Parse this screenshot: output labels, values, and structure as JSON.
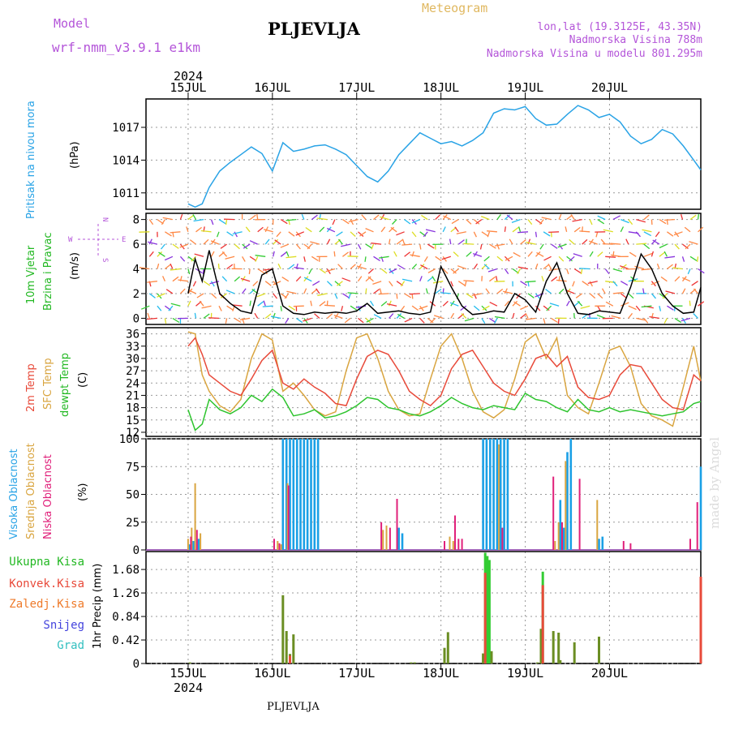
{
  "header": {
    "model_label": "Model",
    "model_name": "wrf-nmm_v3.9.1  e1km",
    "title": "PLJEVLJA",
    "meteogram": "Meteogram",
    "lonlat": "lon,lat (19.3125E, 43.35N)",
    "elevation": "Nadmorska Visina 788m",
    "model_elevation": "Nadmorska Visina u modelu 801.295m",
    "year_top": "2024",
    "year_bottom": "2024",
    "footer_station": "PLJEVLJA",
    "watermark": "made by Angel"
  },
  "colors": {
    "pressure": "#29a3e6",
    "temp2m": "#e84a3a",
    "sfc_temp": "#d9a540",
    "dewpt": "#2ec42e",
    "high_cloud": "#1aa0e6",
    "mid_cloud": "#d9a540",
    "low_cloud": "#e0207a",
    "total_precip": "#33cc33",
    "conv_precip": "#e84a3a",
    "grid": "#999999",
    "label_purple": "#b455d9"
  },
  "chart_data": [
    {
      "type": "line",
      "panel": "pressure",
      "ylabel": "(hPa)",
      "side_label": "Pritisak na nivou mora",
      "x_categories": [
        "15JUL",
        "16JUL",
        "17JUL",
        "18JUL",
        "19JUL",
        "20JUL"
      ],
      "yticks": [
        1011,
        1014,
        1017
      ],
      "ylim": [
        1009.5,
        1019.6
      ],
      "x_hours": [
        0,
        2,
        4,
        6,
        9,
        12,
        15,
        18,
        21,
        24,
        27,
        30,
        33,
        36,
        39,
        42,
        45,
        48,
        51,
        54,
        57,
        60,
        63,
        66,
        69,
        72,
        75,
        78,
        81,
        84,
        87,
        90,
        93,
        96,
        99,
        102,
        105,
        108,
        111,
        114,
        117,
        120,
        123,
        126,
        129,
        132,
        135,
        138,
        141,
        144,
        146
      ],
      "series": [
        {
          "name": "",
          "values": [
            1010.0,
            1009.7,
            1010.0,
            1011.5,
            1013.0,
            1013.8,
            1014.5,
            1015.2,
            1014.6,
            1013.0,
            1015.6,
            1014.8,
            1015.0,
            1015.3,
            1015.4,
            1015.0,
            1014.5,
            1013.5,
            1012.5,
            1012.0,
            1013.0,
            1014.5,
            1015.5,
            1016.5,
            1016.0,
            1015.5,
            1015.7,
            1015.3,
            1015.8,
            1016.5,
            1018.3,
            1018.7,
            1018.6,
            1018.9,
            1017.8,
            1017.2,
            1017.3,
            1018.2,
            1019.0,
            1018.6,
            1017.9,
            1018.2,
            1017.5,
            1016.2,
            1015.5,
            1015.9,
            1016.8,
            1016.4,
            1015.3,
            1014.0,
            1013.1
          ]
        }
      ]
    },
    {
      "type": "line",
      "panel": "wind",
      "ylabel": "(m/s)",
      "side_label_1": "10m Vjetar",
      "side_label_2": "Brzina i Pravac",
      "compass": {
        "n": "N",
        "s": "S",
        "e": "E",
        "w": "W"
      },
      "yticks": [
        0,
        2,
        4,
        6,
        8
      ],
      "ylim": [
        -0.5,
        8.5
      ],
      "x_hours": [
        0,
        2,
        4,
        6,
        9,
        12,
        15,
        18,
        21,
        24,
        27,
        30,
        33,
        36,
        39,
        42,
        45,
        48,
        51,
        54,
        57,
        60,
        63,
        66,
        69,
        72,
        75,
        78,
        81,
        84,
        87,
        90,
        93,
        96,
        99,
        102,
        105,
        108,
        111,
        114,
        117,
        120,
        123,
        126,
        129,
        132,
        135,
        138,
        141,
        144,
        146
      ],
      "series": [
        {
          "name": "",
          "values": [
            2.0,
            4.8,
            3.0,
            5.5,
            2.0,
            1.2,
            0.6,
            0.4,
            3.5,
            4.0,
            1.0,
            0.4,
            0.3,
            0.5,
            0.4,
            0.5,
            0.4,
            0.6,
            1.2,
            0.4,
            0.5,
            0.6,
            0.4,
            0.3,
            0.5,
            4.2,
            2.5,
            1.0,
            0.3,
            0.4,
            0.6,
            0.5,
            2.0,
            1.5,
            0.5,
            3.0,
            4.5,
            2.0,
            0.4,
            0.3,
            0.6,
            0.5,
            0.4,
            2.5,
            5.2,
            4.0,
            2.0,
            1.0,
            0.4,
            0.5,
            2.5
          ]
        }
      ]
    },
    {
      "type": "line",
      "panel": "temperature",
      "ylabel": "(C)",
      "yticks": [
        12,
        15,
        18,
        21,
        24,
        27,
        30,
        33,
        36
      ],
      "ylim": [
        11,
        37.5
      ],
      "x_hours": [
        0,
        2,
        4,
        6,
        9,
        12,
        15,
        18,
        21,
        24,
        27,
        30,
        33,
        36,
        39,
        42,
        45,
        48,
        51,
        54,
        57,
        60,
        63,
        66,
        69,
        72,
        75,
        78,
        81,
        84,
        87,
        90,
        93,
        96,
        99,
        102,
        105,
        108,
        111,
        114,
        117,
        120,
        123,
        126,
        129,
        132,
        135,
        138,
        141,
        144,
        146
      ],
      "series": [
        {
          "name": "2m Temp",
          "values": [
            33.0,
            35.0,
            31.0,
            26.0,
            24.0,
            22.0,
            21.0,
            25.0,
            29.5,
            32.0,
            24.0,
            22.5,
            25.0,
            23.0,
            21.5,
            19.0,
            18.5,
            25.0,
            30.5,
            32.0,
            31.0,
            27.0,
            22.0,
            20.0,
            18.5,
            21.0,
            27.5,
            31.0,
            32.0,
            28.0,
            24.0,
            22.0,
            21.0,
            25.0,
            30.0,
            31.0,
            28.0,
            30.5,
            23.0,
            20.5,
            20.0,
            21.0,
            26.0,
            28.5,
            28.0,
            24.0,
            20.0,
            18.0,
            17.5,
            26.0,
            24.5
          ]
        },
        {
          "name": "SFC Temp",
          "values": [
            36.5,
            36.0,
            26.0,
            22.0,
            18.5,
            17.0,
            20.0,
            30.0,
            36.0,
            34.5,
            22.0,
            24.0,
            21.0,
            17.5,
            16.0,
            17.0,
            27.0,
            35.0,
            36.0,
            30.0,
            22.0,
            17.5,
            16.0,
            16.5,
            25.0,
            33.0,
            36.0,
            30.0,
            22.0,
            17.0,
            15.5,
            17.5,
            25.0,
            34.0,
            36.0,
            30.0,
            35.0,
            21.0,
            18.0,
            16.5,
            24.0,
            32.0,
            33.0,
            28.0,
            19.0,
            16.0,
            15.0,
            13.5,
            23.0,
            33.0,
            24.5
          ]
        },
        {
          "name": "dewpt Temp",
          "values": [
            17.5,
            12.5,
            14.0,
            20.0,
            17.5,
            16.5,
            18.0,
            21.0,
            19.5,
            22.5,
            20.5,
            16.0,
            16.5,
            17.5,
            15.5,
            16.0,
            17.0,
            18.5,
            20.5,
            20.0,
            18.0,
            17.5,
            16.5,
            16.0,
            17.0,
            18.5,
            20.5,
            19.0,
            18.0,
            17.5,
            18.5,
            18.0,
            17.5,
            21.5,
            20.0,
            19.5,
            18.0,
            17.0,
            20.0,
            17.5,
            17.0,
            18.0,
            17.0,
            17.5,
            17.0,
            16.5,
            16.0,
            16.5,
            17.0,
            19.0,
            19.5
          ]
        }
      ]
    },
    {
      "type": "bar",
      "panel": "clouds",
      "ylabel": "(%)",
      "yticks": [
        0,
        25,
        50,
        75,
        100
      ],
      "ylim": [
        0,
        100
      ],
      "series": [
        {
          "name": "Visoka Oblacnost",
          "x_hours": [
            0.5,
            1.5,
            3.0,
            27.0,
            28.0,
            29.0,
            30.0,
            31.0,
            32.0,
            33.0,
            34.0,
            35.0,
            36.0,
            37.0,
            60.0,
            61.0,
            84.0,
            85.0,
            86.0,
            87.0,
            88.0,
            89.0,
            90.0,
            91.0,
            106.0,
            107.0,
            108.0,
            109.0,
            117.0,
            118.0,
            146.0
          ],
          "values": [
            5,
            8,
            10,
            100,
            100,
            100,
            100,
            100,
            100,
            100,
            100,
            100,
            100,
            100,
            20,
            15,
            100,
            100,
            100,
            100,
            100,
            100,
            100,
            100,
            45,
            20,
            88,
            100,
            10,
            12,
            75
          ]
        },
        {
          "name": "Srednja Oblacnost",
          "x_hours": [
            0.0,
            1.0,
            2.0,
            3.5,
            25.5,
            26.5,
            28.3,
            55.5,
            56.5,
            74.5,
            75.5,
            88.5,
            104.5,
            105.5,
            107.5,
            116.5
          ],
          "values": [
            10,
            20,
            60,
            15,
            8,
            5,
            60,
            18,
            22,
            12,
            8,
            95,
            8,
            25,
            80,
            45
          ]
        },
        {
          "name": "Niska Oblacnost",
          "x_hours": [
            0.8,
            2.5,
            24.5,
            26.0,
            28.6,
            55.0,
            57.5,
            59.5,
            73.0,
            76.0,
            77.0,
            78.0,
            89.5,
            104.0,
            106.5,
            111.5,
            124.0,
            126.0,
            143.0,
            145.0
          ],
          "values": [
            12,
            18,
            10,
            6,
            58,
            25,
            20,
            46,
            8,
            31,
            10,
            10,
            20,
            66,
            25,
            64,
            8,
            6,
            10,
            43
          ]
        }
      ]
    },
    {
      "type": "bar",
      "panel": "precipitation",
      "ylabel": "1hr Precip (mm)",
      "yticks": [
        0,
        0.42,
        0.84,
        1.26,
        1.68
      ],
      "ylim": [
        0,
        2.0
      ],
      "series": [
        {
          "name": "Ukupna Kisa",
          "x_hours": [
            0.5,
            27.0,
            28.0,
            29.0,
            30.0,
            63.5,
            64.5,
            73.0,
            74.0,
            84.0,
            84.6,
            85.2,
            85.8,
            86.4,
            99.5,
            100.5,
            101.0,
            104.0,
            105.5,
            106.0,
            110.0,
            117.0,
            146.0
          ],
          "values": [
            0.02,
            1.22,
            0.58,
            0.17,
            0.52,
            0.02,
            0.02,
            0.28,
            0.56,
            0.18,
            1.98,
            1.92,
            1.85,
            0.22,
            0.02,
            0.62,
            1.64,
            0.58,
            0.55,
            0.06,
            0.38,
            0.48,
            1.55
          ]
        },
        {
          "name": "Konvek.Kisa",
          "x_hours": [
            29.0,
            84.6,
            101.0,
            146.0
          ],
          "values": [
            0.14,
            1.62,
            1.4,
            1.55
          ]
        },
        {
          "name": "Zaledj.Kisa",
          "x_hours": [],
          "values": []
        },
        {
          "name": "Snijeg",
          "x_hours": [],
          "values": []
        },
        {
          "name": "Grad",
          "x_hours": [],
          "values": []
        }
      ]
    }
  ],
  "side_labels": {
    "temp_2m": "2m Temp",
    "temp_sfc": "SFC Temp",
    "temp_dewpt": "dewpt Temp",
    "cloud_high": "Visoka Oblacnost",
    "cloud_mid": "Srednja Oblacnost",
    "cloud_low": "Niska Oblacnost",
    "precip_total": "Ukupna Kisa",
    "precip_conv": "Konvek.Kisa",
    "precip_frz": "Zaledj.Kisa",
    "precip_snow": "Snijeg",
    "precip_hail": "Grad"
  }
}
